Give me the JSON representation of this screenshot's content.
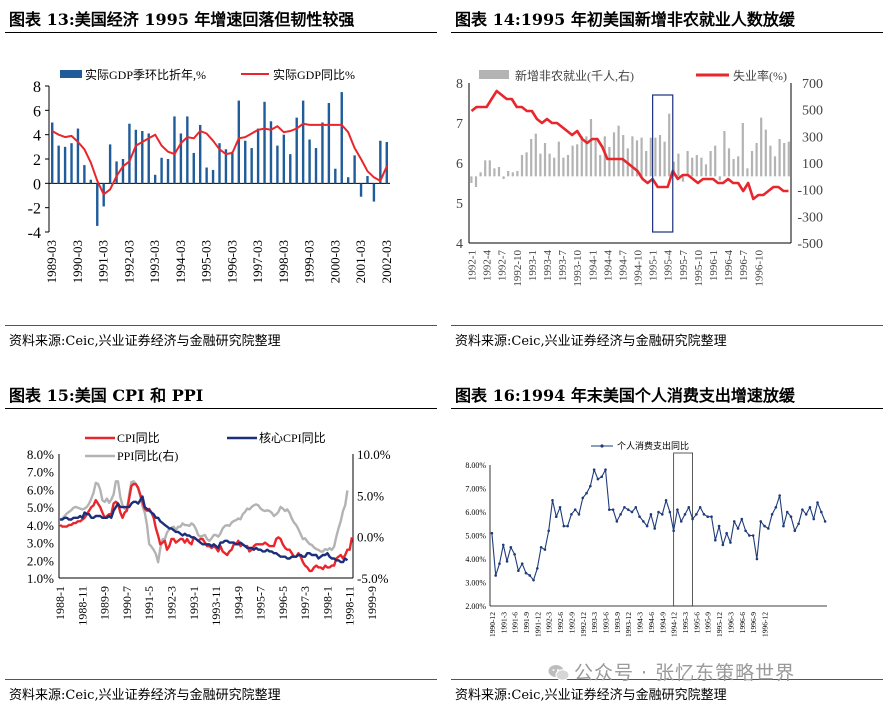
{
  "panels": [
    {
      "title": "图表 13:美国经济 1995 年增速回落但韧性较强",
      "source": "资料来源:Ceic,兴业证券经济与金融研究院整理"
    },
    {
      "title": "图表 14:1995 年初美国新增非农就业人数放缓",
      "source": "资料来源:Ceic,兴业证券经济与金融研究院整理"
    },
    {
      "title": "图表 15:美国 CPI 和 PPI",
      "source": "资料来源:Ceic,兴业证券经济与金融研究院整理"
    },
    {
      "title": "图表 16:1994 年末美国个人消费支出增速放缓",
      "source": "资料来源:Ceic,兴业证券经济与金融研究院整理"
    }
  ],
  "watermark": "公众号 · 张忆东策略世界",
  "colors": {
    "bar_blue": "#1f5c99",
    "red": "#e8262b",
    "navy": "#1b2f7a",
    "gray": "#b3b3b3",
    "pce": "#1f3c7a"
  },
  "chart_data": [
    {
      "type": "bar",
      "legend": [
        "实际GDP季环比折年,%",
        "实际GDP同比%"
      ],
      "x_ticks": [
        "1989-03",
        "1990-03",
        "1991-03",
        "1992-03",
        "1993-03",
        "1994-03",
        "1995-03",
        "1996-03",
        "1997-03",
        "1998-03",
        "1999-03",
        "2000-03",
        "2001-03",
        "2002-03"
      ],
      "ylim": [
        -4,
        8
      ],
      "y_ticks": [
        -4,
        -2,
        0,
        2,
        4,
        6,
        8
      ],
      "series": [
        {
          "name": "实际GDP季环比折年,%",
          "type": "bar",
          "values": [
            5.0,
            3.1,
            3.0,
            3.3,
            4.5,
            1.5,
            0.3,
            -3.5,
            -1.9,
            3.2,
            1.8,
            2.0,
            4.9,
            4.4,
            4.3,
            4.1,
            0.7,
            2.1,
            2.0,
            5.5,
            4.1,
            5.5,
            2.5,
            4.8,
            1.3,
            1.1,
            3.3,
            2.8,
            2.6,
            6.8,
            3.5,
            2.9,
            4.5,
            6.7,
            5.1,
            3.1,
            4.0,
            2.4,
            5.4,
            6.8,
            3.6,
            2.9,
            5.0,
            6.6,
            1.2,
            7.5,
            0.5,
            2.3,
            -1.1,
            0.6,
            -1.5,
            3.5,
            3.4
          ]
        },
        {
          "name": "实际GDP同比%",
          "type": "line",
          "values": [
            4.3,
            4.0,
            3.8,
            3.9,
            3.4,
            2.8,
            1.7,
            0.2,
            -0.9,
            -0.5,
            0.6,
            1.4,
            1.8,
            3.1,
            3.4,
            3.7,
            4.0,
            3.1,
            2.6,
            2.4,
            3.3,
            3.8,
            3.7,
            4.3,
            4.1,
            3.5,
            2.8,
            2.4,
            2.5,
            3.7,
            3.8,
            4.1,
            4.4,
            4.5,
            4.4,
            4.7,
            4.2,
            4.3,
            4.5,
            4.9,
            4.8,
            4.8,
            4.8,
            4.8,
            4.8,
            4.8,
            4.2,
            2.9,
            2.0,
            1.0,
            0.5,
            0.2,
            1.4
          ]
        }
      ]
    },
    {
      "type": "bar",
      "legend": [
        "新增非农就业(千人,右)",
        "失业率(%)"
      ],
      "x_ticks": [
        "1992-1",
        "1992-4",
        "1992-7",
        "1992-10",
        "1993-1",
        "1993-4",
        "1993-7",
        "1993-10",
        "1994-1",
        "1994-4",
        "1994-7",
        "1994-10",
        "1995-1",
        "1995-4",
        "1995-7",
        "1995-10",
        "1996-1",
        "1996-4",
        "1996-7",
        "1996-10"
      ],
      "ylim_left": [
        4,
        8
      ],
      "y_ticks_left": [
        4,
        5,
        6,
        7,
        8
      ],
      "ylim_right": [
        -500,
        700
      ],
      "y_ticks_right": [
        -500,
        -300,
        -100,
        100,
        300,
        500,
        700
      ],
      "highlight": [
        "1995-1",
        "1995-5"
      ],
      "series": [
        {
          "name": "新增非农就业(千人,右)",
          "type": "bar",
          "axis": "right",
          "values": [
            -50,
            -80,
            30,
            120,
            120,
            60,
            70,
            -20,
            40,
            30,
            40,
            160,
            180,
            280,
            320,
            170,
            250,
            170,
            140,
            260,
            140,
            160,
            230,
            240,
            300,
            300,
            430,
            280,
            160,
            300,
            220,
            330,
            380,
            310,
            210,
            300,
            270,
            290,
            190,
            290,
            290,
            310,
            260,
            470,
            110,
            170,
            -40,
            190,
            140,
            160,
            140,
            90,
            190,
            230,
            -30,
            340,
            210,
            130,
            150,
            400,
            60,
            190,
            250,
            440,
            350,
            230,
            150,
            280,
            250,
            260
          ]
        },
        {
          "name": "失业率(%)",
          "type": "line",
          "axis": "left",
          "values": [
            7.3,
            7.4,
            7.4,
            7.4,
            7.6,
            7.8,
            7.7,
            7.6,
            7.6,
            7.4,
            7.4,
            7.3,
            7.3,
            7.1,
            7.0,
            7.1,
            7.0,
            7.0,
            6.9,
            6.8,
            6.7,
            6.8,
            6.6,
            6.5,
            6.6,
            6.6,
            6.4,
            6.1,
            6.1,
            6.1,
            6.1,
            6.0,
            5.9,
            5.8,
            5.6,
            5.5,
            5.6,
            5.4,
            5.4,
            5.4,
            5.8,
            5.6,
            5.7,
            5.7,
            5.6,
            5.5,
            5.6,
            5.6,
            5.6,
            5.5,
            5.5,
            5.6,
            5.5,
            5.5,
            5.3,
            5.5,
            5.1,
            5.2,
            5.2,
            5.3,
            5.4,
            5.4,
            5.3,
            5.3
          ]
        }
      ]
    },
    {
      "type": "line",
      "legend": [
        "CPI同比",
        "核心CPI同比",
        "PPI同比(右)"
      ],
      "x_ticks": [
        "1988-1",
        "1988-11",
        "1989-9",
        "1990-7",
        "1991-5",
        "1992-3",
        "1993-1",
        "1993-11",
        "1994-9",
        "1995-7",
        "1996-5",
        "1997-3",
        "1998-1",
        "1998-11",
        "1999-9"
      ],
      "ylim_left": [
        1.0,
        8.0
      ],
      "y_ticks_left": [
        "1.0%",
        "2.0%",
        "3.0%",
        "4.0%",
        "5.0%",
        "6.0%",
        "7.0%",
        "8.0%"
      ],
      "ylim_right": [
        -5.0,
        10.0
      ],
      "y_ticks_right": [
        "-5.0%",
        "0.0%",
        "5.0%",
        "10.0%"
      ],
      "series": [
        {
          "name": "CPI同比",
          "axis": "left",
          "values": [
            4.0,
            3.9,
            3.9,
            3.9,
            4.0,
            4.0,
            4.1,
            4.1,
            4.2,
            4.2,
            4.3,
            4.4,
            4.6,
            4.8,
            5.0,
            5.1,
            5.4,
            5.2,
            5.0,
            4.7,
            4.4,
            4.5,
            4.6,
            4.6,
            5.2,
            5.3,
            5.2,
            4.7,
            4.4,
            4.7,
            4.8,
            5.5,
            6.2,
            6.3,
            6.3,
            6.1,
            5.7,
            5.3,
            4.9,
            4.8,
            4.9,
            4.7,
            4.4,
            3.8,
            3.4,
            2.9,
            3.0,
            3.1,
            2.6,
            2.8,
            3.2,
            3.2,
            3.0,
            3.1,
            3.2,
            3.2,
            3.0,
            3.2,
            3.0,
            2.9,
            3.3,
            3.2,
            3.1,
            3.2,
            3.2,
            3.0,
            2.8,
            2.8,
            2.7,
            2.8,
            2.7,
            2.5,
            2.8,
            2.5,
            2.4,
            2.3,
            2.5,
            2.6,
            2.9,
            2.9,
            3.1,
            2.8,
            2.9,
            2.8,
            2.8,
            2.5,
            2.6,
            2.8,
            2.9,
            2.9,
            2.9,
            2.9,
            3.0,
            2.9,
            2.8,
            2.8,
            2.8,
            3.2,
            3.3,
            3.2,
            2.9,
            2.7,
            2.6,
            2.6,
            2.4,
            2.2,
            2.2,
            2.4,
            2.2,
            1.9,
            1.7,
            1.6,
            1.4,
            1.4,
            1.6,
            1.7,
            1.6,
            1.6,
            1.5,
            1.7,
            1.6,
            1.6,
            1.7,
            1.7,
            2.1,
            2.2,
            2.3,
            2.1,
            2.3,
            2.6,
            2.6,
            3.3
          ]
        },
        {
          "name": "核心CPI同比",
          "axis": "left",
          "values": [
            4.3,
            4.3,
            4.4,
            4.4,
            4.3,
            4.3,
            4.4,
            4.4,
            4.4,
            4.5,
            4.4,
            4.7,
            4.6,
            4.6,
            4.4,
            4.4,
            4.5,
            4.5,
            4.5,
            4.4,
            4.4,
            4.4,
            4.5,
            4.4,
            4.8,
            5.0,
            5.2,
            5.0,
            5.0,
            5.0,
            5.0,
            5.0,
            5.2,
            5.3,
            5.3,
            5.2,
            5.4,
            5.6,
            5.0,
            4.9,
            4.8,
            4.7,
            4.6,
            4.4,
            4.4,
            4.2,
            4.1,
            4.0,
            3.9,
            3.8,
            3.8,
            3.7,
            3.6,
            3.6,
            3.5,
            3.4,
            3.5,
            3.4,
            3.4,
            3.3,
            3.3,
            3.2,
            3.1,
            3.0,
            2.9,
            2.9,
            2.9,
            2.9,
            2.8,
            2.9,
            2.8,
            2.7,
            3.0,
            3.0,
            3.1,
            3.1,
            3.0,
            3.0,
            3.0,
            2.9,
            2.9,
            3.0,
            2.9,
            2.8,
            2.7,
            2.7,
            2.7,
            2.6,
            2.7,
            2.6,
            2.6,
            2.5,
            2.5,
            2.6,
            2.5,
            2.5,
            2.4,
            2.4,
            2.3,
            2.2,
            2.2,
            2.2,
            2.1,
            2.1,
            2.2,
            2.2,
            2.2,
            2.3,
            2.3,
            2.2,
            2.2,
            2.4,
            2.4,
            2.3,
            2.3,
            2.3,
            2.1,
            2.2,
            2.3,
            2.3,
            2.4,
            2.2,
            2.1,
            2.1,
            2.0,
            2.0,
            1.9,
            1.9,
            2.1,
            2.0
          ]
        },
        {
          "name": "PPI同比(右)",
          "axis": "right",
          "values": [
            2.0,
            2.2,
            2.5,
            2.8,
            3.0,
            3.2,
            3.5,
            3.6,
            3.5,
            3.4,
            3.3,
            3.4,
            3.6,
            4.0,
            4.6,
            5.3,
            6.5,
            6.4,
            5.7,
            4.4,
            4.2,
            4.6,
            4.1,
            4.5,
            5.1,
            6.7,
            6.7,
            4.8,
            3.8,
            3.4,
            3.2,
            5.1,
            6.6,
            6.7,
            6.4,
            5.8,
            4.9,
            3.7,
            2.9,
            1.4,
            -0.9,
            -1.2,
            -1.6,
            -2.1,
            -3.1,
            -1.4,
            -0.3,
            -0.3,
            0.5,
            0.9,
            1.1,
            1.2,
            0.8,
            1.2,
            1.2,
            1.6,
            1.4,
            1.4,
            1.3,
            1.6,
            1.4,
            0.9,
            0.2,
            0.0,
            0.1,
            0.2,
            -0.3,
            -0.5,
            -0.2,
            0.2,
            0.2,
            0.0,
            0.4,
            1.0,
            1.3,
            1.4,
            1.3,
            1.7,
            1.9,
            2.0,
            2.2,
            2.1,
            2.7,
            3.0,
            3.4,
            3.3,
            3.6,
            3.8,
            3.9,
            3.8,
            3.4,
            3.2,
            3.1,
            3.2,
            3.1,
            2.9,
            2.5,
            2.7,
            3.0,
            3.6,
            3.4,
            3.1,
            3.3,
            2.9,
            2.2,
            1.7,
            1.4,
            0.9,
            0.3,
            -0.3,
            -0.2,
            -0.6,
            -0.9,
            -1.0,
            -1.3,
            -1.5,
            -1.6,
            -1.8,
            -1.8,
            -1.5,
            -1.6,
            -1.4,
            -1.6,
            -1.2,
            0.0,
            1.0,
            1.9,
            3.1,
            3.8,
            5.6
          ]
        }
      ]
    },
    {
      "type": "line",
      "legend": [
        "个人消费支出同比"
      ],
      "x_ticks": [
        "1990-12",
        "1991-3",
        "1991-6",
        "1991-9",
        "1991-12",
        "1992-3",
        "1992-6",
        "1992-9",
        "1992-12",
        "1993-3",
        "1993-6",
        "1993-9",
        "1993-12",
        "1994-3",
        "1994-6",
        "1994-9",
        "1994-12",
        "1995-3",
        "1995-6",
        "1995-9",
        "1995-12",
        "1996-3",
        "1996-6",
        "1996-9",
        "1996-12"
      ],
      "ylim": [
        2.0,
        8.0
      ],
      "y_ticks": [
        "2.00%",
        "3.00%",
        "4.00%",
        "5.00%",
        "6.00%",
        "7.00%",
        "8.00%"
      ],
      "highlight": [
        "1994-12",
        "1995-5"
      ],
      "series": [
        {
          "name": "个人消费支出同比",
          "values": [
            5.1,
            3.3,
            3.8,
            4.6,
            3.9,
            4.5,
            4.2,
            3.5,
            3.8,
            3.4,
            3.3,
            3.1,
            3.6,
            4.5,
            4.4,
            5.2,
            6.5,
            5.8,
            6.2,
            5.4,
            5.4,
            5.9,
            6.1,
            5.9,
            6.6,
            6.8,
            7.1,
            7.8,
            7.4,
            7.5,
            7.8,
            6.1,
            6.1,
            5.6,
            5.9,
            6.2,
            6.1,
            6.0,
            6.2,
            5.8,
            5.6,
            5.4,
            5.9,
            5.3,
            6.0,
            5.9,
            6.5,
            6.0,
            5.2,
            6.1,
            5.6,
            5.9,
            6.2,
            5.7,
            5.9,
            6.2,
            5.9,
            5.8,
            5.8,
            4.8,
            5.4,
            4.6,
            5.1,
            4.7,
            5.6,
            5.3,
            5.7,
            5.2,
            5.0,
            5.0,
            4.0,
            5.6,
            5.4,
            5.3,
            5.9,
            6.2,
            6.7,
            5.4,
            6.0,
            5.8,
            5.2,
            5.5,
            6.1,
            5.9,
            6.2,
            5.7,
            6.4,
            6.0,
            5.6
          ]
        }
      ]
    }
  ]
}
